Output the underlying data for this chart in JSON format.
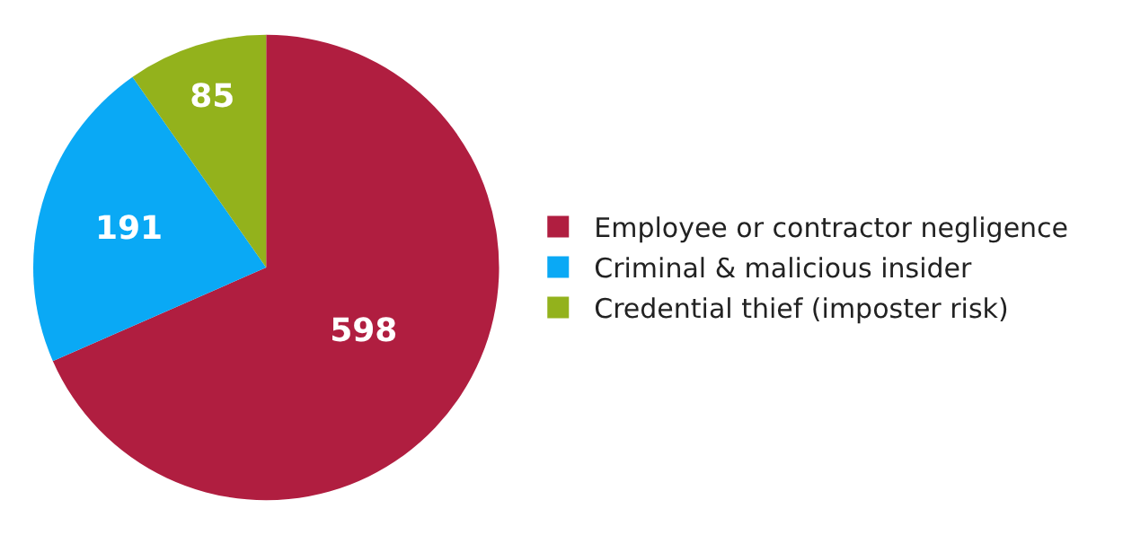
{
  "chart_data": {
    "type": "pie",
    "categories": [
      "Employee or contractor negligence",
      "Criminal & malicious insider",
      "Credential thief (imposter risk)"
    ],
    "values": [
      598,
      191,
      85
    ],
    "colors": [
      "#b01e40",
      "#0aa9f5",
      "#93b21c"
    ],
    "data_labels": true,
    "legend": "right"
  }
}
